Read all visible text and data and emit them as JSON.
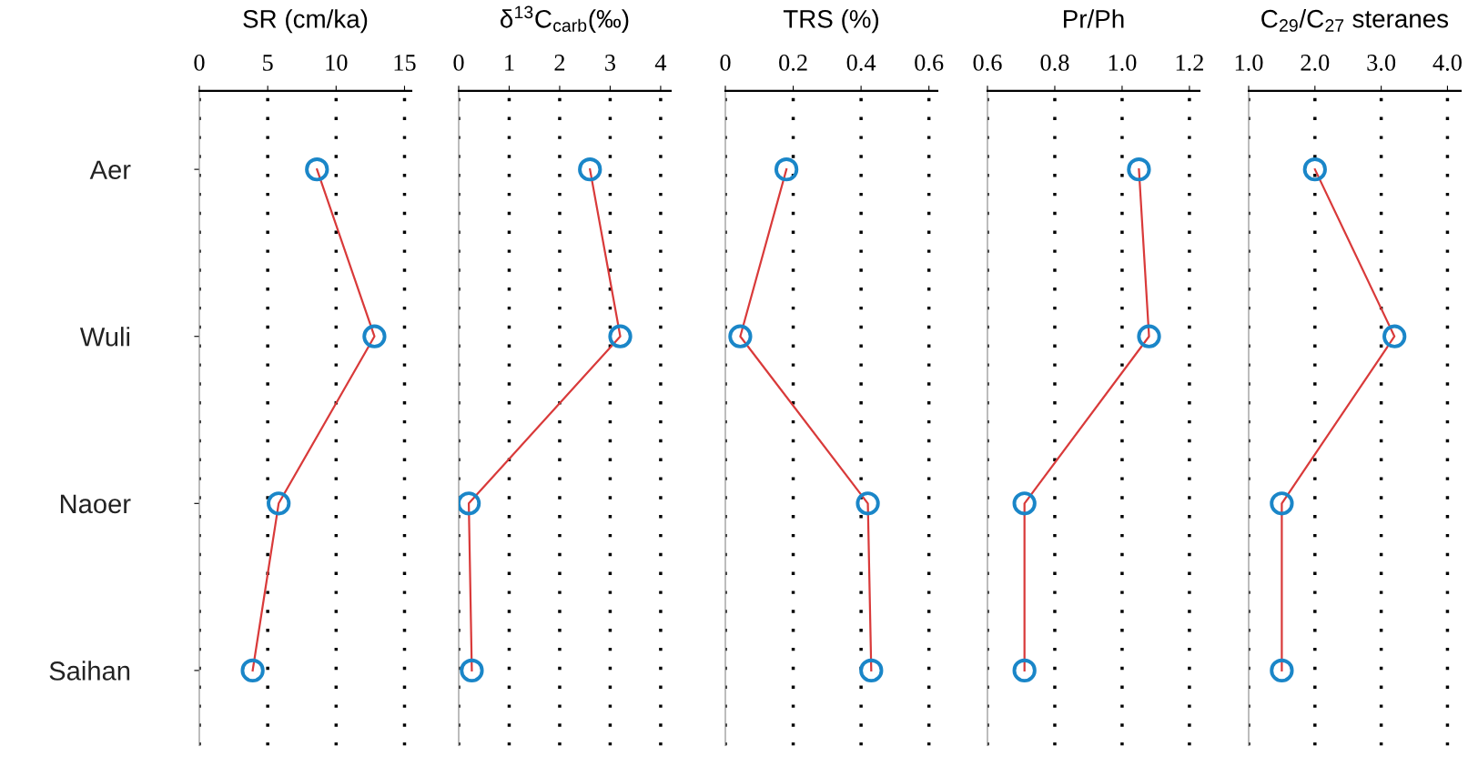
{
  "chart_data": [
    {
      "type": "line",
      "orientation": "horizontal",
      "title": "SR (cm/ka)",
      "categories": [
        "Aer",
        "Wuli",
        "Naoer",
        "Saihan"
      ],
      "xlim": [
        0,
        15.5
      ],
      "xticks": [
        0,
        5,
        10,
        15
      ],
      "grid": "x",
      "marker": "circle",
      "tick_labels": true,
      "series": [
        {
          "color": "#d93a3a",
          "colors": [
            "#1a86c8",
            "#1a86c8",
            "#1a86c8",
            "#1a86c8"
          ],
          "values": [
            8.6,
            12.8,
            5.8,
            3.9
          ]
        }
      ]
    },
    {
      "type": "line",
      "orientation": "horizontal",
      "title": "δ$^{13}$C$_{carb}$(‰)",
      "categories": [
        null,
        null,
        null,
        null
      ],
      "xlim": [
        0,
        4.2
      ],
      "xticks": [
        0,
        1,
        2,
        3,
        4
      ],
      "grid": "x",
      "marker": "circle",
      "tick_labels": "x",
      "series": [
        {
          "color": "#d93a3a",
          "colors": [
            "#1a86c8",
            "#1a86c8",
            "#1a86c8",
            "#1a86c8"
          ],
          "values": [
            2.6,
            3.2,
            0.2,
            0.26
          ]
        }
      ]
    },
    {
      "type": "line",
      "orientation": "horizontal",
      "title": "TRS (%)",
      "categories": [
        null,
        null,
        null,
        null
      ],
      "xlim": [
        0,
        0.625
      ],
      "xticks": [
        0,
        0.2,
        0.4,
        0.6
      ],
      "grid": "x",
      "marker": "circle",
      "tick_labels": "x",
      "series": [
        {
          "color": "#d93a3a",
          "colors": [
            "#1a86c8",
            "#1a86c8",
            "#1a86c8",
            "#1a86c8"
          ],
          "values": [
            0.18,
            0.044,
            0.42,
            0.43
          ]
        }
      ]
    },
    {
      "type": "line",
      "orientation": "horizontal",
      "title": "Pr/Ph",
      "categories": [
        null,
        null,
        null,
        null
      ],
      "xlim": [
        0.6,
        1.23
      ],
      "xticks": [
        0.6,
        0.8,
        {
          "value": 1.0,
          "label": "1.0"
        },
        1.2
      ],
      "grid": "x",
      "marker": "circle",
      "tick_labels": "x",
      "series": [
        {
          "color": "#d93a3a",
          "colors": [
            "#1a86c8",
            "#1a86c8",
            "#1a86c8",
            "#1a86c8"
          ],
          "values": [
            1.05,
            1.08,
            0.71,
            0.71
          ]
        }
      ]
    },
    {
      "type": "line",
      "orientation": "horizontal",
      "title": "C$_{29}$/C$_{27}$ steranes",
      "categories": [
        null,
        null,
        null,
        null
      ],
      "xlim": [
        1.0,
        4.2
      ],
      "xticks": [
        {
          "value": 1.0,
          "label": "1.0"
        },
        {
          "value": 2.0,
          "label": "2.0"
        },
        {
          "value": 3.0,
          "label": "3.0"
        },
        {
          "value": 4.0,
          "label": "4.0"
        }
      ],
      "grid": "x",
      "marker": "circle",
      "tick_labels": "x",
      "series": [
        {
          "color": "#d93a3a",
          "colors": [
            "#1a86c8",
            "#1a86c8",
            "#1a86c8",
            "#1a86c8"
          ],
          "values": [
            2.0,
            3.2,
            1.5,
            1.5
          ]
        }
      ]
    }
  ]
}
